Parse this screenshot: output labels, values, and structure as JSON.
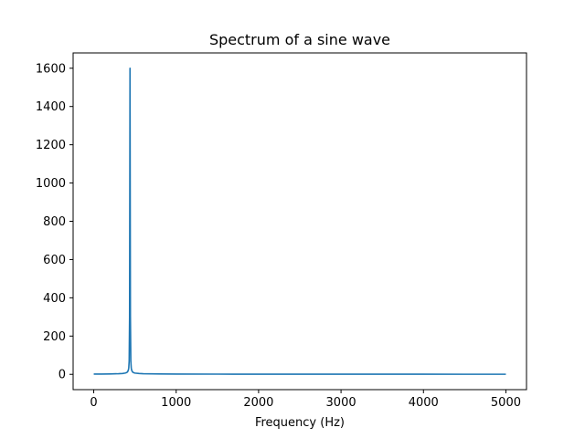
{
  "chart_data": {
    "type": "line",
    "title": "Spectrum of a sine wave",
    "xlabel": "Frequency (Hz)",
    "ylabel": "",
    "xlim": [
      -250,
      5250
    ],
    "ylim": [
      -80,
      1680
    ],
    "grid": false,
    "xticks": [
      0,
      1000,
      2000,
      3000,
      4000,
      5000
    ],
    "yticks": [
      0,
      200,
      400,
      600,
      800,
      1000,
      1200,
      1400,
      1600
    ],
    "series": [
      {
        "color": "#1f77b4",
        "x": [
          0,
          100,
          200,
          300,
          350,
          380,
          400,
          410,
          420,
          425,
          430,
          435,
          440,
          445,
          450,
          455,
          460,
          470,
          480,
          500,
          550,
          600,
          700,
          800,
          1000,
          1500,
          2000,
          2500,
          3000,
          3500,
          4000,
          4500,
          5000
        ],
        "y": [
          1.2,
          1.5,
          2.0,
          3.2,
          4.5,
          6.5,
          9.5,
          13,
          22,
          34,
          70,
          300,
          1600,
          300,
          70,
          34,
          22,
          13,
          9.5,
          6.5,
          4.5,
          3.2,
          2.5,
          1.9,
          1.5,
          1.1,
          0.9,
          0.8,
          0.7,
          0.6,
          0.6,
          0.5,
          0.5
        ]
      }
    ]
  }
}
